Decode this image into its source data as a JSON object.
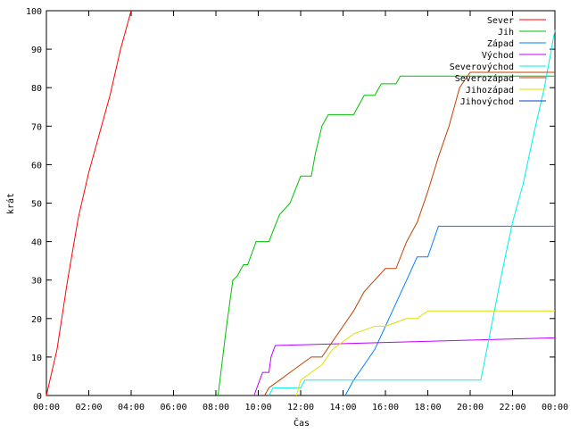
{
  "chart_data": {
    "type": "line",
    "xlabel": "Čas",
    "ylabel": "krát",
    "xlim": [
      0,
      24
    ],
    "ylim": [
      0,
      100
    ],
    "x_tick_labels": [
      "00:00",
      "02:00",
      "04:00",
      "06:00",
      "08:00",
      "10:00",
      "12:00",
      "14:00",
      "16:00",
      "18:00",
      "20:00",
      "22:00",
      "00:00"
    ],
    "y_ticks": [
      0,
      10,
      20,
      30,
      40,
      50,
      60,
      70,
      80,
      90,
      100
    ],
    "grid": false,
    "legend_position": "top-right",
    "series": [
      {
        "name": "Sever",
        "color": "#ff0000",
        "points": [
          [
            0,
            0
          ],
          [
            0.5,
            12
          ],
          [
            1,
            30
          ],
          [
            1.5,
            46
          ],
          [
            2,
            58
          ],
          [
            2.5,
            68
          ],
          [
            3,
            78
          ],
          [
            3.5,
            90
          ],
          [
            4,
            100
          ]
        ]
      },
      {
        "name": "Jih",
        "color": "#00c000",
        "points": [
          [
            8.1,
            0
          ],
          [
            8.5,
            18
          ],
          [
            8.8,
            30
          ],
          [
            9,
            31
          ],
          [
            9.3,
            34
          ],
          [
            9.5,
            34
          ],
          [
            9.7,
            37
          ],
          [
            9.9,
            40
          ],
          [
            10.5,
            40
          ],
          [
            11,
            47
          ],
          [
            11.5,
            50
          ],
          [
            12,
            57
          ],
          [
            12.5,
            57
          ],
          [
            12.7,
            63
          ],
          [
            13,
            70
          ],
          [
            13.3,
            73
          ],
          [
            14.5,
            73
          ],
          [
            14.8,
            76
          ],
          [
            15,
            78
          ],
          [
            15.5,
            78
          ],
          [
            15.8,
            81
          ],
          [
            16.5,
            81
          ],
          [
            16.7,
            83
          ],
          [
            24,
            83
          ]
        ]
      },
      {
        "name": "Západ",
        "color": "#0080ff",
        "points": [
          [
            14.1,
            0
          ],
          [
            14.5,
            4
          ],
          [
            15,
            8
          ],
          [
            15.5,
            12
          ],
          [
            16,
            18
          ],
          [
            16.5,
            24
          ],
          [
            17,
            30
          ],
          [
            17.5,
            36
          ],
          [
            18,
            36
          ],
          [
            18.5,
            44
          ],
          [
            24,
            44
          ]
        ]
      },
      {
        "name": "Východ",
        "color": "#c000ff",
        "points": [
          [
            9.8,
            0
          ],
          [
            10,
            3
          ],
          [
            10.2,
            6
          ],
          [
            10.5,
            6
          ],
          [
            10.6,
            10
          ],
          [
            10.8,
            13
          ],
          [
            24,
            15
          ]
        ]
      },
      {
        "name": "Severovýchod",
        "color": "#00eeee",
        "points": [
          [
            10.5,
            0
          ],
          [
            10.7,
            2
          ],
          [
            12,
            2
          ],
          [
            12.2,
            4
          ],
          [
            20.5,
            4
          ],
          [
            21,
            18
          ],
          [
            21.5,
            32
          ],
          [
            22,
            45
          ],
          [
            22.5,
            55
          ],
          [
            23,
            68
          ],
          [
            23.5,
            80
          ],
          [
            24,
            95
          ]
        ]
      },
      {
        "name": "Severozápad",
        "color": "#c04000",
        "points": [
          [
            10.3,
            0
          ],
          [
            10.5,
            2
          ],
          [
            11,
            4
          ],
          [
            11.5,
            6
          ],
          [
            12,
            8
          ],
          [
            12.5,
            10
          ],
          [
            13,
            10
          ],
          [
            13.5,
            14
          ],
          [
            14,
            18
          ],
          [
            14.5,
            22
          ],
          [
            15,
            27
          ],
          [
            15.5,
            30
          ],
          [
            16,
            33
          ],
          [
            16.5,
            33
          ],
          [
            17,
            40
          ],
          [
            17.5,
            45
          ],
          [
            18,
            53
          ],
          [
            18.5,
            62
          ],
          [
            19,
            70
          ],
          [
            19.5,
            80
          ],
          [
            20,
            84
          ],
          [
            24,
            84
          ]
        ]
      },
      {
        "name": "Jihozápad",
        "color": "#e0e000",
        "points": [
          [
            11.8,
            0
          ],
          [
            12,
            4
          ],
          [
            12.5,
            6
          ],
          [
            13,
            8
          ],
          [
            13.5,
            12
          ],
          [
            14,
            14
          ],
          [
            14.5,
            16
          ],
          [
            15,
            17
          ],
          [
            15.5,
            18
          ],
          [
            16,
            18
          ],
          [
            16.5,
            19
          ],
          [
            17,
            20
          ],
          [
            17.5,
            20
          ],
          [
            18,
            22
          ],
          [
            24,
            22
          ]
        ]
      },
      {
        "name": "Jihovýchod",
        "color": "#0040c0",
        "points": []
      }
    ]
  }
}
